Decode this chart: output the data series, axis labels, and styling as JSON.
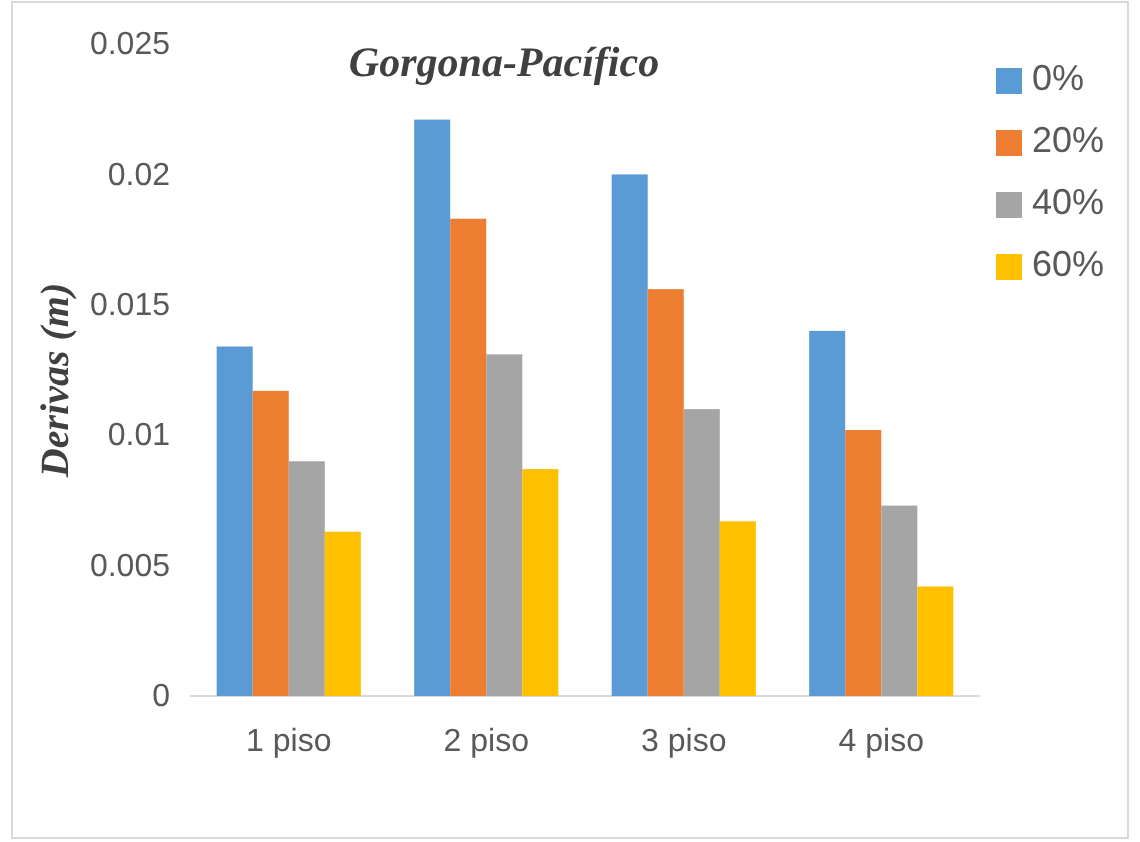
{
  "chart_data": {
    "type": "bar",
    "title": "Gorgona-Pacífico",
    "ylabel": "Derivas  (m)",
    "categories": [
      "1 piso",
      "2 piso",
      "3 piso",
      "4 piso"
    ],
    "series": [
      {
        "name": "0%",
        "color": "#5b9bd5",
        "values": [
          0.0134,
          0.0221,
          0.02,
          0.014
        ]
      },
      {
        "name": "20%",
        "color": "#ed7d31",
        "values": [
          0.0117,
          0.0183,
          0.0156,
          0.0102
        ]
      },
      {
        "name": "40%",
        "color": "#a5a5a5",
        "values": [
          0.009,
          0.0131,
          0.011,
          0.0073
        ]
      },
      {
        "name": "60%",
        "color": "#ffc000",
        "values": [
          0.0063,
          0.0087,
          0.0067,
          0.0042
        ]
      }
    ],
    "ylim": [
      0,
      0.025
    ],
    "yticks": [
      0,
      0.005,
      0.01,
      0.015,
      0.02,
      0.025
    ],
    "grid": false,
    "legend": "top right"
  }
}
